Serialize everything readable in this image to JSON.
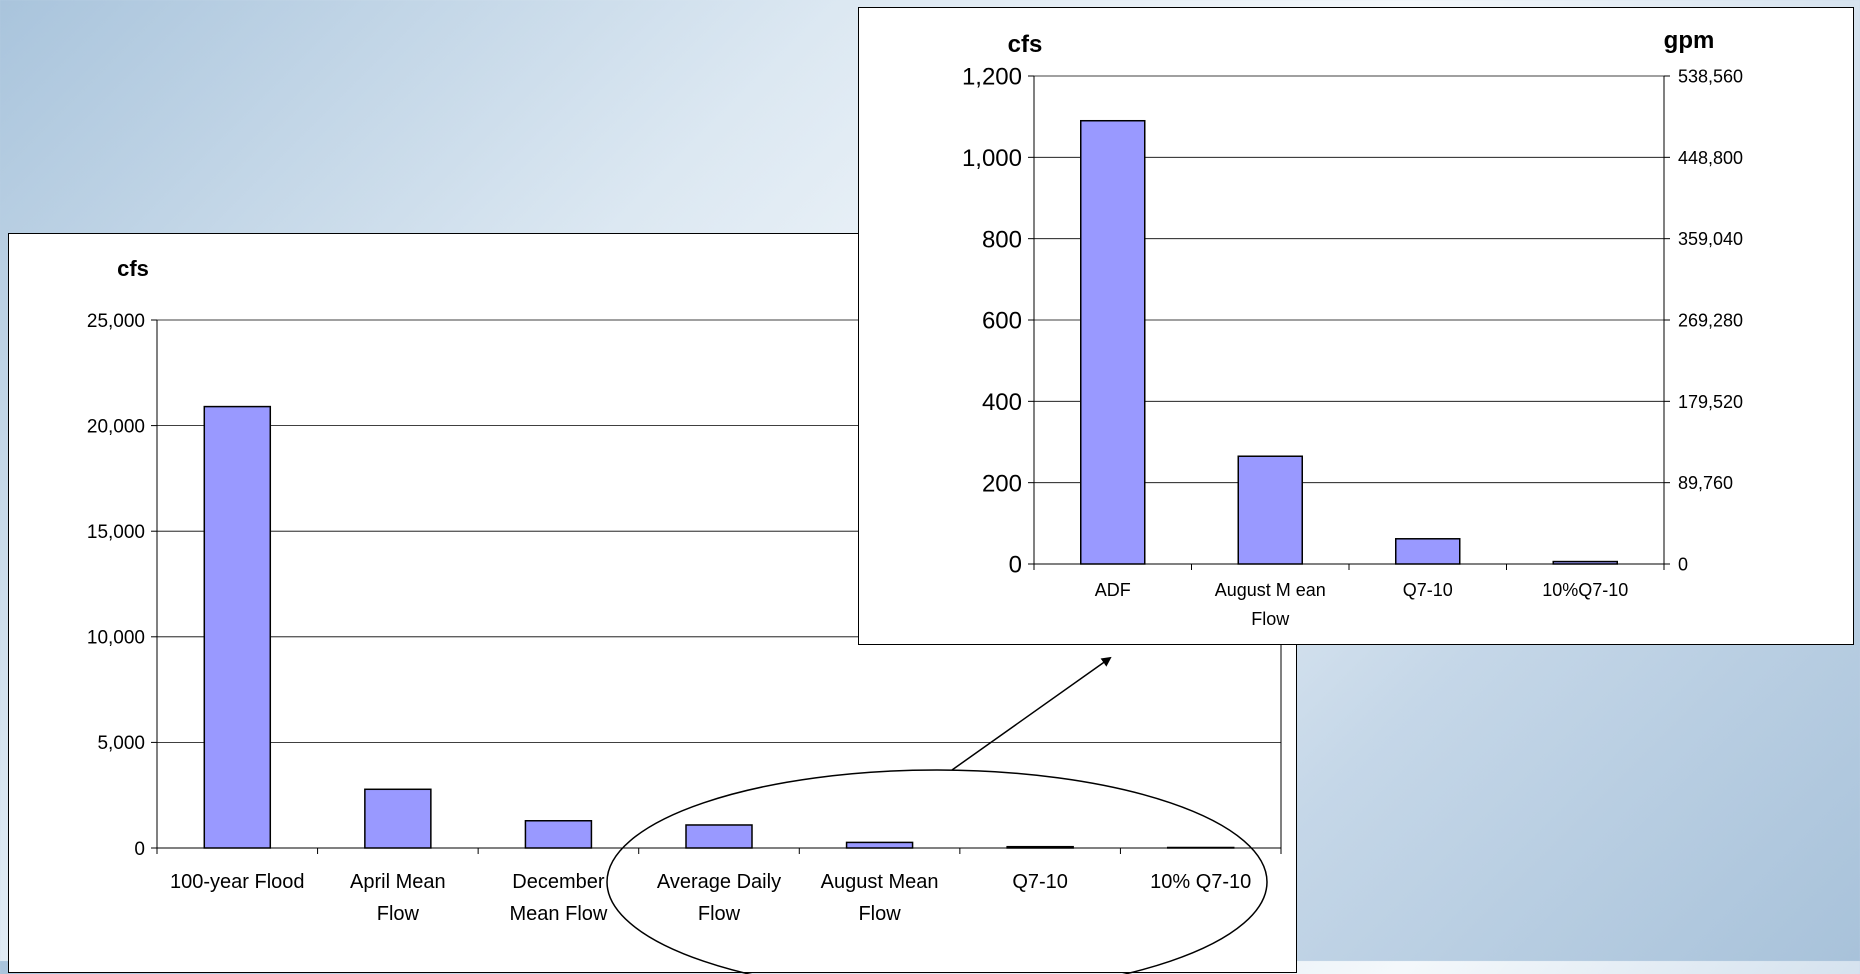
{
  "charts": [
    {
      "type": "bar",
      "ylabel": "cfs",
      "categories": [
        [
          "100-year Flood"
        ],
        [
          "April Mean",
          "Flow"
        ],
        [
          "December",
          "Mean Flow"
        ],
        [
          "Average Daily",
          "Flow"
        ],
        [
          "August Mean",
          "Flow"
        ],
        [
          "Q7-10"
        ],
        [
          "10% Q7-10"
        ]
      ],
      "values": [
        20900,
        2780,
        1290,
        1090,
        265,
        62,
        6
      ],
      "ylim": [
        0,
        25000
      ],
      "yticks": [
        "0",
        "5,000",
        "10,000",
        "15,000",
        "20,000",
        "25,000"
      ],
      "grid": true,
      "bar_color": "#9999ff"
    },
    {
      "type": "bar",
      "ylabel": "cfs",
      "y2label": "gpm",
      "categories": [
        [
          "ADF"
        ],
        [
          "August M ean",
          "Flow"
        ],
        [
          "Q7-10"
        ],
        [
          "10%Q7-10"
        ]
      ],
      "values": [
        1090,
        265,
        62,
        6
      ],
      "ylim": [
        0,
        1200
      ],
      "yticks": [
        "0",
        "200",
        "400",
        "600",
        "800",
        "1,000",
        "1,200"
      ],
      "y2ticks": [
        "0",
        "89,760",
        "179,520",
        "269,280",
        "359,040",
        "448,800",
        "538,560"
      ],
      "grid": true,
      "bar_color": "#9999ff"
    }
  ]
}
